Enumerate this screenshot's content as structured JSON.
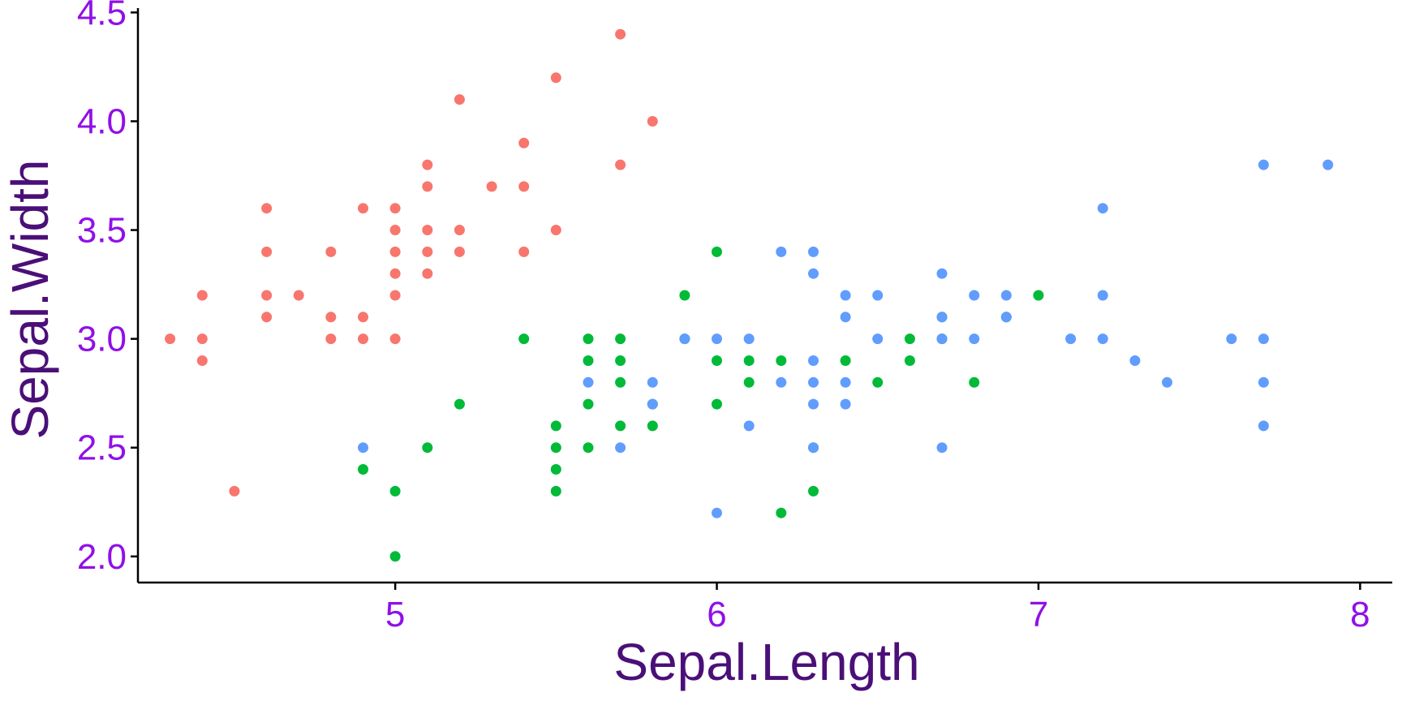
{
  "chart_data": {
    "type": "scatter",
    "title": "",
    "xlabel": "Sepal.Length",
    "ylabel": "Sepal.Width",
    "xlim": [
      4.2,
      8.1
    ],
    "ylim": [
      1.88,
      4.52
    ],
    "x_ticks": [
      5,
      6,
      7,
      8
    ],
    "x_tick_labels": [
      "5",
      "6",
      "7",
      "8"
    ],
    "y_ticks": [
      2.0,
      2.5,
      3.0,
      3.5,
      4.0,
      4.5
    ],
    "y_tick_labels": [
      "2.0",
      "2.5",
      "3.0",
      "3.5",
      "4.0",
      "4.5"
    ],
    "grid": false,
    "legend": "none",
    "colors": {
      "tick_labels": "#9010e8",
      "axis_titles": "#4b0f78",
      "axis_lines": "#000000"
    },
    "series": [
      {
        "color": "#f8766d",
        "points": [
          [
            4.3,
            3.0
          ],
          [
            4.4,
            3.2
          ],
          [
            4.4,
            3.0
          ],
          [
            4.4,
            2.9
          ],
          [
            4.5,
            2.3
          ],
          [
            4.6,
            3.6
          ],
          [
            4.6,
            3.4
          ],
          [
            4.6,
            3.2
          ],
          [
            4.6,
            3.1
          ],
          [
            4.7,
            3.2
          ],
          [
            4.8,
            3.4
          ],
          [
            4.8,
            3.1
          ],
          [
            4.8,
            3.0
          ],
          [
            4.9,
            3.6
          ],
          [
            4.9,
            3.1
          ],
          [
            4.9,
            3.0
          ],
          [
            5.0,
            3.6
          ],
          [
            5.0,
            3.5
          ],
          [
            5.0,
            3.4
          ],
          [
            5.0,
            3.3
          ],
          [
            5.0,
            3.2
          ],
          [
            5.0,
            3.0
          ],
          [
            5.1,
            3.8
          ],
          [
            5.1,
            3.7
          ],
          [
            5.1,
            3.5
          ],
          [
            5.1,
            3.4
          ],
          [
            5.1,
            3.3
          ],
          [
            5.2,
            4.1
          ],
          [
            5.2,
            3.5
          ],
          [
            5.2,
            3.4
          ],
          [
            5.3,
            3.7
          ],
          [
            5.4,
            3.9
          ],
          [
            5.4,
            3.7
          ],
          [
            5.4,
            3.4
          ],
          [
            5.5,
            4.2
          ],
          [
            5.5,
            3.5
          ],
          [
            5.7,
            4.4
          ],
          [
            5.7,
            3.8
          ],
          [
            5.8,
            4.0
          ]
        ]
      },
      {
        "color": "#00ba38",
        "points": [
          [
            4.9,
            2.4
          ],
          [
            5.0,
            2.3
          ],
          [
            5.0,
            2.0
          ],
          [
            5.1,
            2.5
          ],
          [
            5.2,
            2.7
          ],
          [
            5.4,
            3.0
          ],
          [
            5.5,
            2.6
          ],
          [
            5.5,
            2.5
          ],
          [
            5.5,
            2.4
          ],
          [
            5.5,
            2.3
          ],
          [
            5.6,
            3.0
          ],
          [
            5.6,
            2.9
          ],
          [
            5.6,
            2.7
          ],
          [
            5.6,
            2.5
          ],
          [
            5.7,
            3.0
          ],
          [
            5.7,
            2.9
          ],
          [
            5.7,
            2.8
          ],
          [
            5.7,
            2.6
          ],
          [
            5.8,
            2.7
          ],
          [
            5.8,
            2.6
          ],
          [
            5.9,
            3.2
          ],
          [
            5.9,
            3.0
          ],
          [
            6.0,
            3.4
          ],
          [
            6.0,
            2.9
          ],
          [
            6.0,
            2.7
          ],
          [
            6.1,
            2.9
          ],
          [
            6.1,
            2.8
          ],
          [
            6.2,
            2.9
          ],
          [
            6.2,
            2.2
          ],
          [
            6.3,
            2.5
          ],
          [
            6.3,
            2.3
          ],
          [
            6.4,
            2.9
          ],
          [
            6.5,
            2.8
          ],
          [
            6.6,
            3.0
          ],
          [
            6.6,
            2.9
          ],
          [
            6.7,
            3.1
          ],
          [
            6.7,
            3.0
          ],
          [
            6.8,
            2.8
          ],
          [
            6.9,
            3.1
          ],
          [
            7.0,
            3.2
          ]
        ]
      },
      {
        "color": "#619cff",
        "points": [
          [
            4.9,
            2.5
          ],
          [
            5.6,
            2.8
          ],
          [
            5.7,
            2.5
          ],
          [
            5.8,
            2.8
          ],
          [
            5.8,
            2.7
          ],
          [
            5.9,
            3.0
          ],
          [
            6.0,
            3.0
          ],
          [
            6.0,
            2.2
          ],
          [
            6.1,
            3.0
          ],
          [
            6.1,
            2.6
          ],
          [
            6.2,
            3.4
          ],
          [
            6.2,
            2.8
          ],
          [
            6.3,
            3.4
          ],
          [
            6.3,
            3.3
          ],
          [
            6.3,
            2.9
          ],
          [
            6.3,
            2.8
          ],
          [
            6.3,
            2.7
          ],
          [
            6.3,
            2.5
          ],
          [
            6.4,
            3.2
          ],
          [
            6.4,
            3.1
          ],
          [
            6.4,
            2.8
          ],
          [
            6.4,
            2.7
          ],
          [
            6.5,
            3.2
          ],
          [
            6.5,
            3.0
          ],
          [
            6.7,
            3.3
          ],
          [
            6.7,
            3.1
          ],
          [
            6.7,
            3.0
          ],
          [
            6.7,
            2.5
          ],
          [
            6.8,
            3.2
          ],
          [
            6.8,
            3.0
          ],
          [
            6.9,
            3.2
          ],
          [
            6.9,
            3.1
          ],
          [
            7.1,
            3.0
          ],
          [
            7.2,
            3.6
          ],
          [
            7.2,
            3.2
          ],
          [
            7.2,
            3.0
          ],
          [
            7.3,
            2.9
          ],
          [
            7.4,
            2.8
          ],
          [
            7.6,
            3.0
          ],
          [
            7.7,
            3.8
          ],
          [
            7.7,
            3.0
          ],
          [
            7.7,
            2.8
          ],
          [
            7.7,
            2.6
          ],
          [
            7.9,
            3.8
          ]
        ]
      }
    ]
  }
}
